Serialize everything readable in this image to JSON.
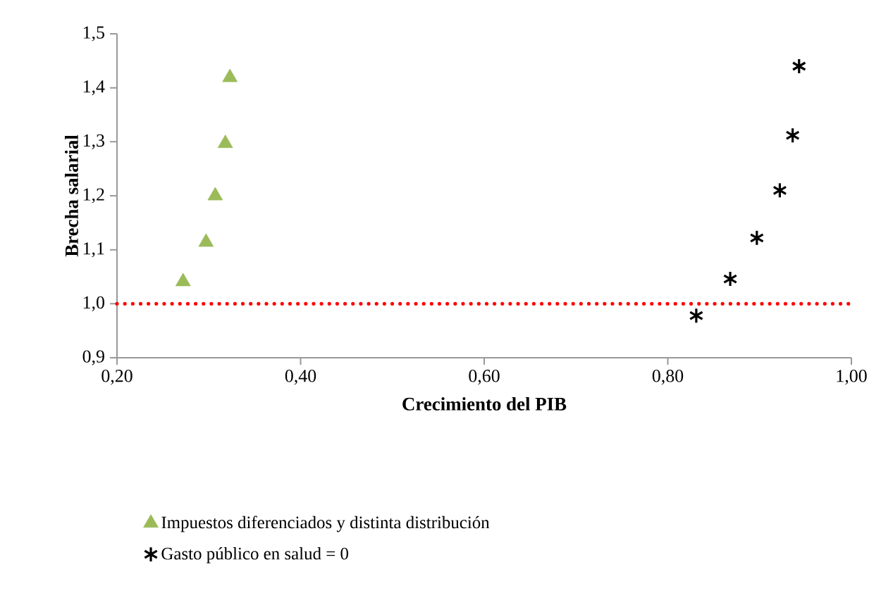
{
  "chart_data": {
    "type": "scatter",
    "xlabel": "Crecimiento del PIB",
    "ylabel": "Brecha salarial",
    "series": [
      {
        "name": "Impuestos diferenciados y distinta distribución",
        "color": "#9bbb59",
        "marker": "triangle",
        "x": [
          0.272,
          0.297,
          0.307,
          0.318,
          0.323
        ],
        "values": [
          1.041,
          1.114,
          1.2,
          1.297,
          1.419
        ]
      },
      {
        "name": "Gasto público en salud = 0",
        "color": "#000000",
        "marker": "cross",
        "x": [
          0.831,
          0.868,
          0.897,
          0.922,
          0.936,
          0.943
        ],
        "values": [
          0.978,
          1.046,
          1.122,
          1.21,
          1.312,
          1.44
        ]
      }
    ],
    "xlim": [
      0.2,
      1.0
    ],
    "ylim": [
      0.9,
      1.5
    ],
    "xticks": [
      {
        "value": 0.2,
        "label": "0,20"
      },
      {
        "value": 0.4,
        "label": "0,40"
      },
      {
        "value": 0.6,
        "label": "0,60"
      },
      {
        "value": 0.8,
        "label": "0,80"
      },
      {
        "value": 1.0,
        "label": "1,00"
      }
    ],
    "yticks": [
      {
        "value": 0.9,
        "label": "0,9"
      },
      {
        "value": 1.0,
        "label": "1,0"
      },
      {
        "value": 1.1,
        "label": "1,1"
      },
      {
        "value": 1.2,
        "label": "1,2"
      },
      {
        "value": 1.3,
        "label": "1,3"
      },
      {
        "value": 1.4,
        "label": "1,4"
      },
      {
        "value": 1.5,
        "label": "1,5"
      }
    ],
    "ref_lines": [
      {
        "axis": "y",
        "value": 1.0,
        "color": "#ff0000",
        "line_style": "dotted"
      }
    ],
    "grid": false,
    "legend": "bottom"
  }
}
